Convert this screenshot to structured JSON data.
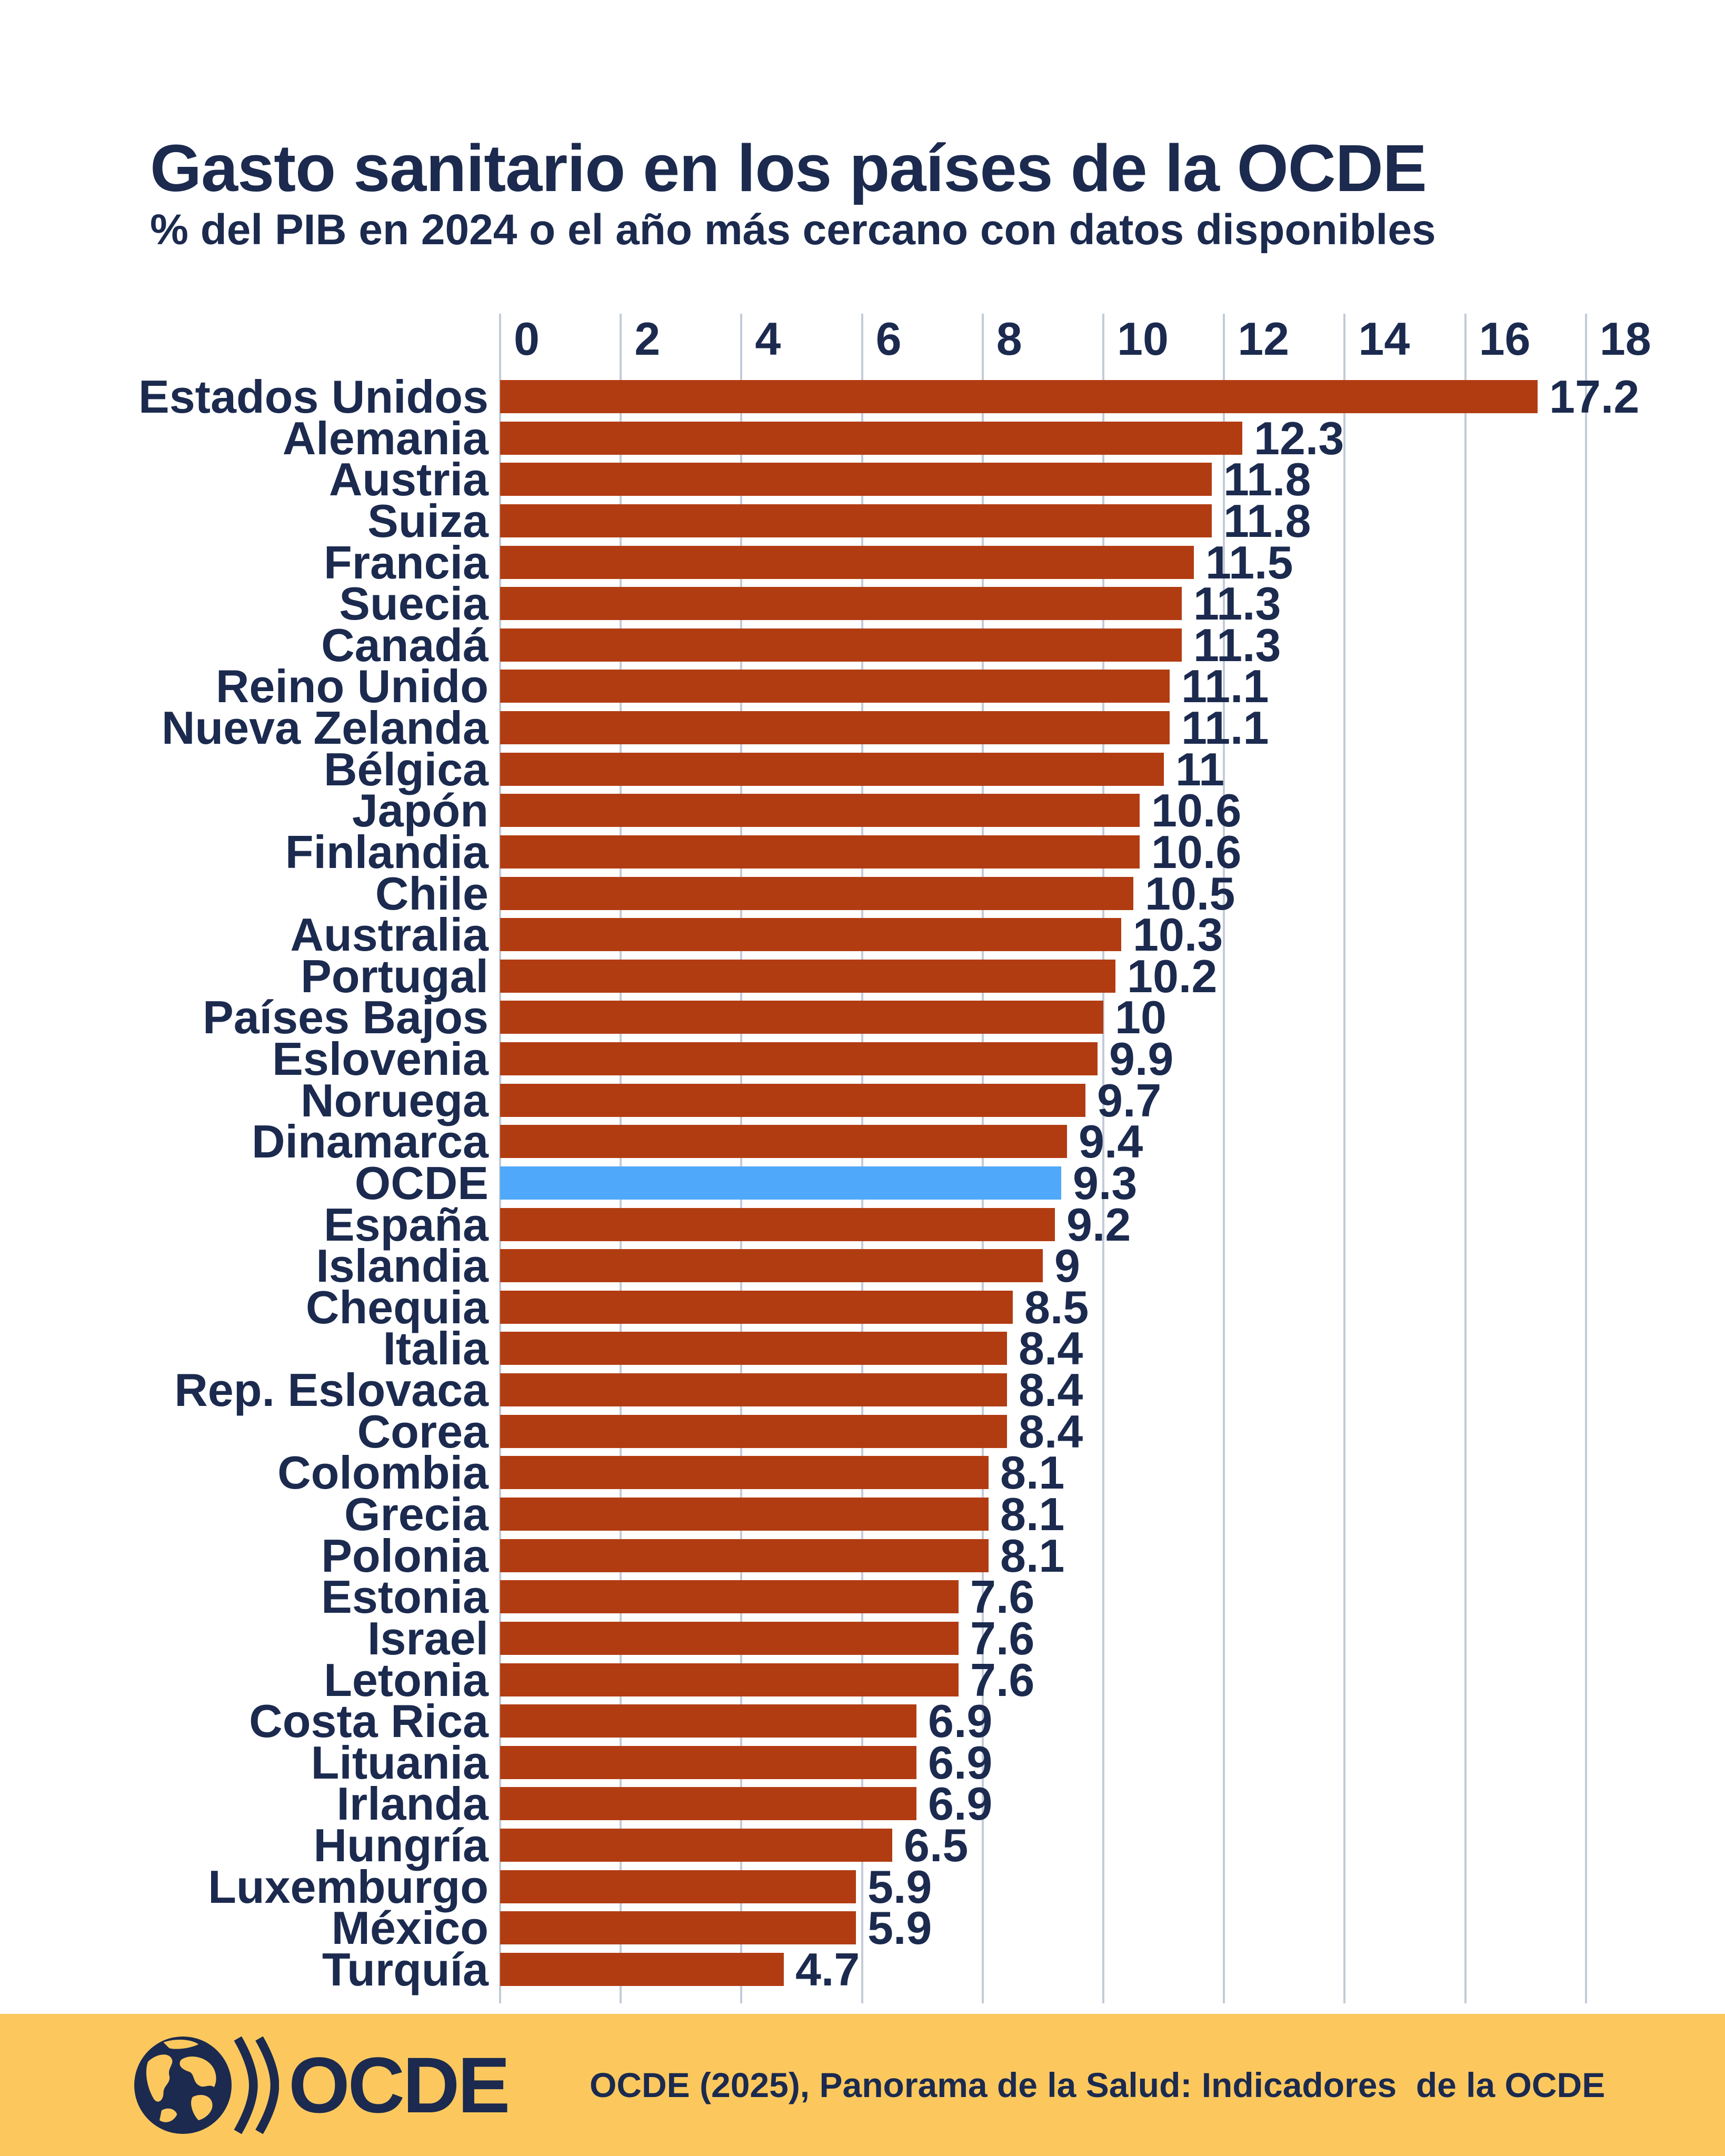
{
  "header": {
    "title": "Gasto sanitario en los países de la OCDE",
    "subtitle": "% del PIB en 2024 o el año más cercano con datos disponibles"
  },
  "chart_data": {
    "type": "bar",
    "orientation": "horizontal",
    "title": "Gasto sanitario en los países de la OCDE",
    "xlabel": "% del PIB",
    "xlim": [
      0,
      18
    ],
    "x_ticks": [
      0,
      2,
      4,
      6,
      8,
      10,
      12,
      14,
      16,
      18
    ],
    "grid": true,
    "highlight_category": "OCDE",
    "categories": [
      "Estados Unidos",
      "Alemania",
      "Austria",
      "Suiza",
      "Francia",
      "Suecia",
      "Canadá",
      "Reino Unido",
      "Nueva Zelanda",
      "Bélgica",
      "Japón",
      "Finlandia",
      "Chile",
      "Australia",
      "Portugal",
      "Países Bajos",
      "Eslovenia",
      "Noruega",
      "Dinamarca",
      "OCDE",
      "España",
      "Islandia",
      "Chequia",
      "Italia",
      "Rep. Eslovaca",
      "Corea",
      "Colombia",
      "Grecia",
      "Polonia",
      "Estonia",
      "Israel",
      "Letonia",
      "Costa Rica",
      "Lituania",
      "Irlanda",
      "Hungría",
      "Luxemburgo",
      "México",
      "Turquía"
    ],
    "values": [
      17.2,
      12.3,
      11.8,
      11.8,
      11.5,
      11.3,
      11.3,
      11.1,
      11.1,
      11,
      10.6,
      10.6,
      10.5,
      10.3,
      10.2,
      10,
      9.9,
      9.7,
      9.4,
      9.3,
      9.2,
      9,
      8.5,
      8.4,
      8.4,
      8.4,
      8.1,
      8.1,
      8.1,
      7.6,
      7.6,
      7.6,
      6.9,
      6.9,
      6.9,
      6.5,
      5.9,
      5.9,
      4.7
    ],
    "value_labels": [
      "17.2",
      "12.3",
      "11.8",
      "11.8",
      "11.5",
      "11.3",
      "11.3",
      "11.1",
      "11.1",
      "11",
      "10.6",
      "10.6",
      "10.5",
      "10.3",
      "10.2",
      "10",
      "9.9",
      "9.7",
      "9.4",
      "9.3",
      "9.2",
      "9",
      "8.5",
      "8.4",
      "8.4",
      "8.4",
      "8.1",
      "8.1",
      "8.1",
      "7.6",
      "7.6",
      "7.6",
      "6.9",
      "6.9",
      "6.9",
      "6.5",
      "5.9",
      "5.9",
      "4.7"
    ]
  },
  "colors": {
    "bar": "#B23C12",
    "highlight": "#4FA8F9",
    "navy": "#1B2A4E",
    "gridline": "#C3CBD8",
    "footer_bg": "#FCC85E"
  },
  "footer": {
    "logo_text": "OCDE",
    "source": "OCDE (2025), Panorama de la Salud: Indicadores  de la OCDE"
  }
}
